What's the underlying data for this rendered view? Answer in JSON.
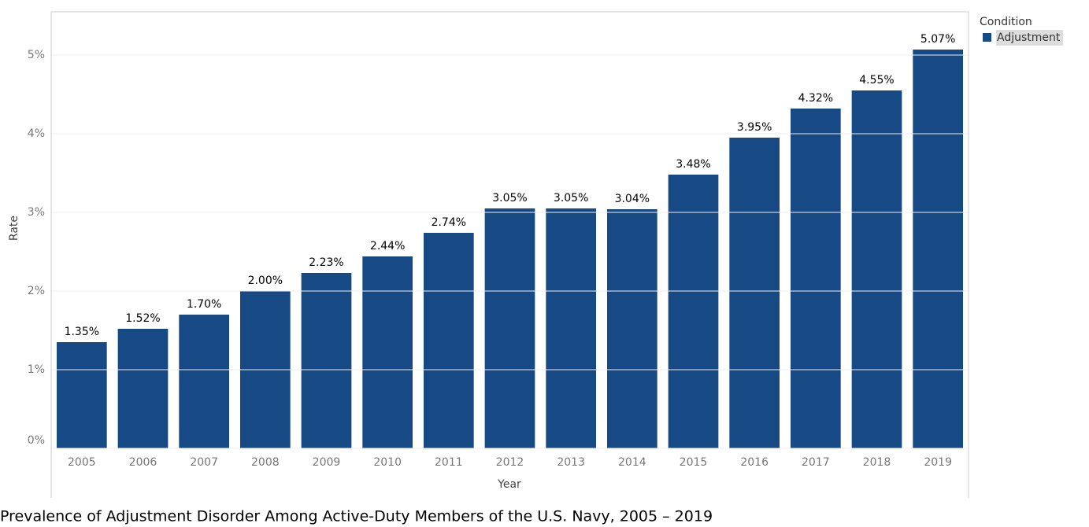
{
  "chart_data": {
    "type": "bar",
    "title": "Prevalence of Adjustment Disorder Among Active-Duty Members of the U.S. Navy, 2005 – 2019",
    "x_label": "Year",
    "y_label": "Rate",
    "legend_title": "Condition",
    "legend_position": "right",
    "categories": [
      "2005",
      "2006",
      "2007",
      "2008",
      "2009",
      "2010",
      "2011",
      "2012",
      "2013",
      "2014",
      "2015",
      "2016",
      "2017",
      "2018",
      "2019"
    ],
    "series": [
      {
        "name": "Adjustment",
        "color": "#174a85",
        "values": [
          1.35,
          1.52,
          1.7,
          2.0,
          2.23,
          2.44,
          2.74,
          3.05,
          3.05,
          3.04,
          3.48,
          3.95,
          4.32,
          4.55,
          5.07
        ],
        "value_labels": [
          "1.35%",
          "1.52%",
          "1.70%",
          "2.00%",
          "2.23%",
          "2.44%",
          "2.74%",
          "3.05%",
          "3.05%",
          "3.04%",
          "3.48%",
          "3.95%",
          "4.32%",
          "4.55%",
          "5.07%"
        ]
      }
    ],
    "ylim": [
      0,
      5.55
    ],
    "yticks": [
      {
        "value": 0,
        "label": "0%"
      },
      {
        "value": 1,
        "label": "1%"
      },
      {
        "value": 2,
        "label": "2%"
      },
      {
        "value": 3,
        "label": "3%"
      },
      {
        "value": 4,
        "label": "4%"
      },
      {
        "value": 5,
        "label": "5%"
      }
    ],
    "grid": true
  }
}
